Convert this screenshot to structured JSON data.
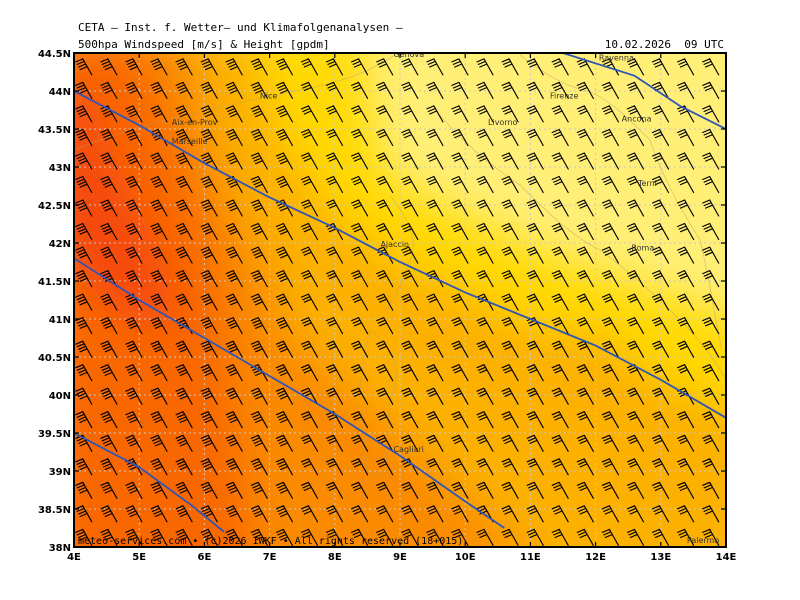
{
  "header": {
    "line1": "CETA — Inst. f. Wetter— und Klimafolgenanalysen —",
    "line2": "500hpa Windspeed [m/s] & Height [gpdm]",
    "datetime": "10.02.2026  09 UTC"
  },
  "footer": "meteo-services.com • (c)2026 IWKF • All rights reserved (18+015)",
  "map": {
    "lon_range": [
      4,
      14
    ],
    "lat_range": [
      38,
      44.5
    ],
    "lon_ticks": [
      "4E",
      "5E",
      "6E",
      "7E",
      "8E",
      "9E",
      "10E",
      "11E",
      "12E",
      "13E",
      "14E"
    ],
    "lat_ticks": [
      "38N",
      "38.5N",
      "39N",
      "39.5N",
      "40N",
      "40.5N",
      "41N",
      "41.5N",
      "42N",
      "42.5N",
      "43N",
      "43.5N",
      "44N",
      "44.5N"
    ],
    "cities": [
      {
        "name": "Genova",
        "lon": 8.9,
        "lat": 44.45
      },
      {
        "name": "Ravenna",
        "lon": 12.05,
        "lat": 44.4
      },
      {
        "name": "Firenze",
        "lon": 11.3,
        "lat": 43.9
      },
      {
        "name": "Nice",
        "lon": 6.85,
        "lat": 43.9
      },
      {
        "name": "Aix-en-Prov",
        "lon": 5.5,
        "lat": 43.55
      },
      {
        "name": "Marseille",
        "lon": 5.5,
        "lat": 43.3
      },
      {
        "name": "Livorno",
        "lon": 10.35,
        "lat": 43.55
      },
      {
        "name": "Ancona",
        "lon": 12.4,
        "lat": 43.6
      },
      {
        "name": "Terni",
        "lon": 12.65,
        "lat": 42.75
      },
      {
        "name": "Ajaccio",
        "lon": 8.7,
        "lat": 41.95
      },
      {
        "name": "Roma",
        "lon": 12.55,
        "lat": 41.9
      },
      {
        "name": "Cagliari",
        "lon": 8.9,
        "lat": 39.25
      },
      {
        "name": "Palermo",
        "lon": 13.4,
        "lat": 38.05
      }
    ],
    "height_contours": [
      {
        "points": [
          [
            4,
            44.0
          ],
          [
            5,
            43.55
          ],
          [
            6,
            43.05
          ],
          [
            7,
            42.6
          ],
          [
            8,
            42.2
          ],
          [
            9,
            41.75
          ],
          [
            10,
            41.35
          ],
          [
            11,
            41.0
          ],
          [
            12,
            40.65
          ],
          [
            13,
            40.2
          ],
          [
            14,
            39.7
          ]
        ]
      },
      {
        "points": [
          [
            4,
            41.8
          ],
          [
            5,
            41.25
          ],
          [
            6,
            40.75
          ],
          [
            7,
            40.25
          ],
          [
            8,
            39.75
          ],
          [
            9,
            39.2
          ],
          [
            10,
            38.6
          ],
          [
            10.6,
            38.25
          ]
        ]
      },
      {
        "points": [
          [
            4,
            39.5
          ],
          [
            5,
            39.05
          ],
          [
            5.8,
            38.55
          ],
          [
            6.3,
            38.2
          ]
        ]
      },
      {
        "points": [
          [
            11.5,
            44.5
          ],
          [
            12.6,
            44.2
          ],
          [
            13.3,
            43.8
          ],
          [
            14,
            43.5
          ]
        ]
      }
    ],
    "colors": {
      "level1": "#ffef76",
      "level2": "#ffd902",
      "level3": "#fcb102",
      "level4": "#fa8a02",
      "level5": "#f96805",
      "level6": "#f54a0a",
      "contour": "#2f55b8",
      "grid": "#c8c8c8",
      "barb": "#000000"
    }
  }
}
